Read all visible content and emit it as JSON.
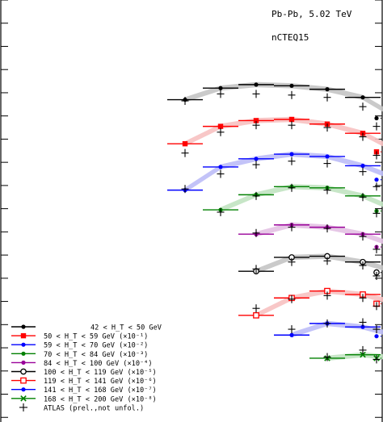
{
  "chart_data": {
    "type": "scatter",
    "title": "",
    "xlabel": "",
    "ylabel": "",
    "xlim": [
      0,
      10
    ],
    "ylim": [
      -18.2,
      0
    ],
    "y_scale": "log10",
    "grid": false,
    "legend_placement": "bottom-left",
    "annotations": [
      "Pb-Pb, 5.02 TeV",
      "nCTEQ15"
    ],
    "bins": [
      {
        "lo": 3.0,
        "hi": 4.0
      },
      {
        "lo": 4.0,
        "hi": 5.0
      },
      {
        "lo": 5.0,
        "hi": 6.0
      },
      {
        "lo": 6.0,
        "hi": 7.0
      },
      {
        "lo": 7.0,
        "hi": 8.0
      },
      {
        "lo": 8.0,
        "hi": 9.0
      },
      {
        "lo": 9.0,
        "hi": 10.0
      }
    ],
    "series": [
      {
        "name": "42 < H_T < 50 GeV",
        "color": "#000000",
        "band": "#c4c4c4",
        "marker": "dot",
        "start": 0,
        "values": [
          -4.3,
          -3.8,
          -3.65,
          -3.7,
          -3.85,
          -4.2,
          -5.1,
          -6.9
        ],
        "atlas": [
          -4.35,
          -4.05,
          -4.05,
          -4.1,
          -4.2,
          -4.6,
          -5.45,
          -6.55
        ]
      },
      {
        "name": "50 < H_T < 59 GeV (×10⁻¹)",
        "color": "#ff0000",
        "band": "#f7c1c1",
        "marker": "square",
        "start": 0,
        "values": [
          -6.2,
          -5.45,
          -5.2,
          -5.15,
          -5.35,
          -5.75,
          -6.55,
          -7.9
        ],
        "atlas": [
          -6.6,
          -5.7,
          -5.4,
          -5.4,
          -5.5,
          -5.9,
          -6.7,
          -7.7
        ]
      },
      {
        "name": "59 < H_T < 70 GeV (×10⁻²)",
        "color": "#0000ff",
        "band": "#bdbdf7",
        "marker": "dot",
        "start": 0,
        "values": [
          -8.2,
          -7.2,
          -6.85,
          -6.65,
          -6.75,
          -7.15,
          -7.75,
          -9.05
        ],
        "atlas": [
          -8.15,
          -7.5,
          -7.1,
          -6.95,
          -7.05,
          -7.4,
          -8.05,
          -9.0
        ]
      },
      {
        "name": "70 < H_T < 84 GeV (×10⁻³)",
        "color": "#008000",
        "band": "#c1e3c1",
        "marker": "dot",
        "start": 1,
        "values": [
          -9.05,
          -8.4,
          -8.05,
          -8.1,
          -8.45,
          -9.1,
          -10.3
        ],
        "atlas": [
          -9.15,
          -8.45,
          -8.1,
          -8.2,
          -8.5,
          -9.2,
          -10.1
        ]
      },
      {
        "name": "84 < H_T < 100 GeV (×10⁻⁴)",
        "color": "#990099",
        "band": "#e3c1e3",
        "marker": "dot",
        "start": 2,
        "values": [
          -10.1,
          -9.7,
          -9.8,
          -10.1,
          -10.65,
          -11.65
        ],
        "atlas": [
          -10.05,
          -9.8,
          -9.85,
          -10.2,
          -10.75,
          -11.65
        ]
      },
      {
        "name": "100 < H_T < 119 GeV (×10⁻⁵)",
        "color": "#000000",
        "band": "#c4c4c4",
        "marker": "circle",
        "start": 2,
        "values": [
          -11.7,
          -11.1,
          -11.05,
          -11.3,
          -11.75,
          -12.55
        ],
        "atlas": [
          -11.6,
          -11.3,
          -11.25,
          -11.45,
          -11.9,
          -12.5
        ]
      },
      {
        "name": "119 < H_T < 141 GeV (×10⁻⁶)",
        "color": "#ff0000",
        "band": "#f7c1c1",
        "marker": "open-square",
        "start": 2,
        "values": [
          -13.6,
          -12.85,
          -12.55,
          -12.7,
          -13.1,
          -13.7
        ],
        "atlas": [
          -13.3,
          -12.9,
          -12.75,
          -12.85,
          -13.2,
          -13.85
        ]
      },
      {
        "name": "141 < H_T < 168 GeV (×10⁻⁷)",
        "color": "#0000ff",
        "band": "#bdbdf7",
        "marker": "dot",
        "start": 3,
        "values": [
          -14.45,
          -13.95,
          -14.1,
          -14.5,
          -15.0
        ],
        "atlas": [
          -14.2,
          -13.95,
          -13.9,
          -14.2,
          -14.9
        ]
      },
      {
        "name": "168 < H_T < 200 GeV (×10⁻⁸)",
        "color": "#008000",
        "band": "#c1e3c1",
        "marker": "x",
        "start": 4,
        "values": [
          -15.45,
          -15.3,
          -15.45,
          -15.9
        ],
        "atlas": [
          -15.4,
          -15.1,
          -15.5,
          -15.9
        ]
      }
    ],
    "legend_extra": "ATLAS (prel.,not unfol.)"
  }
}
